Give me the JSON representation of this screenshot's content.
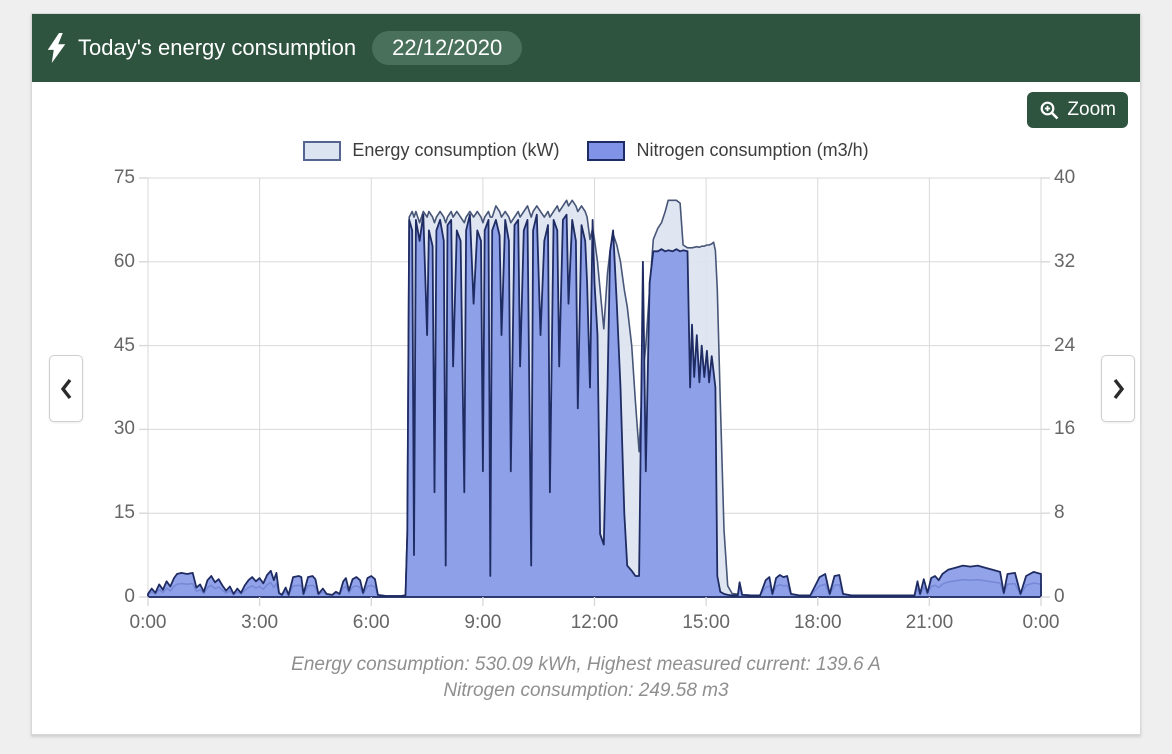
{
  "header": {
    "title": "Today's energy consumption",
    "date_badge": "22/12/2020",
    "background": "#2e5440",
    "badge_background": "#48705a"
  },
  "toolbar": {
    "zoom_label": "Zoom"
  },
  "icons": {
    "header_icon": "lightning-bolt",
    "zoom_icon": "magnifier-plus",
    "prev_icon": "chevron-left",
    "next_icon": "chevron-right"
  },
  "legend": [
    {
      "label": "Energy consumption (kW)",
      "fill": "#dce3f1",
      "border": "#55658f"
    },
    {
      "label": "Nitrogen consumption (m3/h)",
      "fill": "#8093e6",
      "border": "#1f2c63"
    }
  ],
  "caption": {
    "line1": "Energy consumption: 530.09 kWh, Highest measured current: 139.6 A",
    "line2": "Nitrogen consumption: 249.58 m3"
  },
  "chart_data": {
    "type": "area",
    "title": "Today's energy consumption 22/12/2020",
    "grid": true,
    "legend_position": "top",
    "x_axis": {
      "unit": "time of day",
      "range_hours": [
        0,
        24
      ],
      "tick_hours": [
        0,
        3,
        6,
        9,
        12,
        15,
        18,
        21,
        24
      ],
      "tick_labels": [
        "0:00",
        "3:00",
        "6:00",
        "9:00",
        "12:00",
        "15:00",
        "18:00",
        "21:00",
        "0:00"
      ]
    },
    "y_left": {
      "label": "Energy consumption (kW)",
      "range": [
        0,
        75
      ],
      "ticks": [
        0,
        15,
        30,
        45,
        60,
        75
      ]
    },
    "y_right": {
      "label": "Nitrogen consumption (m3/h)",
      "range": [
        0,
        40
      ],
      "ticks": [
        0,
        8,
        16,
        24,
        32,
        40
      ]
    },
    "series": [
      {
        "name": "Energy consumption (kW)",
        "axis": "left",
        "fill": "#dce3f1",
        "fill_opacity": 0.9,
        "stroke": "#475577",
        "stroke_width": 1.6
      },
      {
        "name": "Nitrogen consumption (m3/h)",
        "axis": "right",
        "fill": "#8093e6",
        "fill_opacity": 0.85,
        "stroke": "#1f2c63",
        "stroke_width": 1.8
      }
    ],
    "points_format": [
      "hour",
      "energy_kW",
      "nitrogen_m3h"
    ],
    "points": [
      [
        0,
        0.4,
        0.3
      ],
      [
        0.1,
        0.9,
        0.8
      ],
      [
        0.2,
        0.5,
        0.4
      ],
      [
        0.3,
        1.3,
        1.2
      ],
      [
        0.4,
        0.8,
        0.7
      ],
      [
        0.5,
        1.6,
        1.5
      ],
      [
        0.6,
        1.1,
        1.0
      ],
      [
        0.7,
        1.9,
        1.8
      ],
      [
        0.78,
        2.3,
        2.2
      ],
      [
        0.9,
        2.4,
        2.3
      ],
      [
        1.05,
        2.3,
        2.2
      ],
      [
        1.2,
        2.4,
        2.3
      ],
      [
        1.3,
        1.0,
        0.9
      ],
      [
        1.4,
        1.3,
        1.2
      ],
      [
        1.5,
        0.6,
        0.5
      ],
      [
        1.6,
        1.7,
        1.6
      ],
      [
        1.7,
        2.1,
        2.0
      ],
      [
        1.8,
        1.5,
        1.4
      ],
      [
        1.9,
        1.8,
        1.7
      ],
      [
        2.0,
        1.2,
        1.1
      ],
      [
        2.1,
        0.7,
        0.6
      ],
      [
        2.2,
        1.1,
        1.0
      ],
      [
        2.3,
        0.4,
        0.3
      ],
      [
        2.4,
        0.9,
        0.8
      ],
      [
        2.5,
        0.5,
        0.4
      ],
      [
        2.6,
        1.2,
        1.1
      ],
      [
        2.7,
        1.7,
        1.6
      ],
      [
        2.8,
        2.0,
        1.9
      ],
      [
        2.9,
        1.6,
        1.5
      ],
      [
        3.0,
        1.9,
        1.8
      ],
      [
        3.1,
        1.4,
        1.3
      ],
      [
        3.2,
        2.2,
        2.1
      ],
      [
        3.3,
        2.6,
        2.5
      ],
      [
        3.38,
        1.7,
        1.6
      ],
      [
        3.45,
        2.4,
        2.3
      ],
      [
        3.52,
        0.5,
        0.4
      ],
      [
        3.6,
        0.3,
        0.2
      ],
      [
        3.7,
        1.0,
        0.9
      ],
      [
        3.78,
        0.3,
        0.2
      ],
      [
        3.9,
        2.0,
        1.9
      ],
      [
        4.05,
        2.1,
        2.0
      ],
      [
        4.12,
        2.0,
        1.9
      ],
      [
        4.18,
        0.4,
        0.3
      ],
      [
        4.3,
        2.0,
        1.9
      ],
      [
        4.42,
        2.1,
        2.0
      ],
      [
        4.5,
        1.8,
        1.7
      ],
      [
        4.58,
        0.4,
        0.3
      ],
      [
        4.7,
        0.9,
        0.8
      ],
      [
        4.8,
        0.4,
        0.3
      ],
      [
        4.95,
        0.3,
        0.2
      ],
      [
        5.05,
        0.6,
        0.5
      ],
      [
        5.15,
        0.4,
        0.3
      ],
      [
        5.25,
        1.6,
        1.5
      ],
      [
        5.32,
        1.9,
        1.8
      ],
      [
        5.4,
        0.7,
        0.6
      ],
      [
        5.5,
        1.8,
        1.7
      ],
      [
        5.6,
        2.0,
        1.9
      ],
      [
        5.7,
        1.7,
        1.6
      ],
      [
        5.78,
        0.5,
        0.4
      ],
      [
        5.9,
        1.9,
        1.8
      ],
      [
        6.0,
        2.1,
        2.0
      ],
      [
        6.1,
        1.8,
        1.7
      ],
      [
        6.18,
        0.3,
        0.2
      ],
      [
        6.4,
        0.2,
        0.1
      ],
      [
        6.6,
        0.2,
        0.1
      ],
      [
        6.8,
        0.2,
        0.1
      ],
      [
        6.92,
        0.3,
        0.15
      ],
      [
        6.97,
        12,
        6
      ],
      [
        7.02,
        68,
        36
      ],
      [
        7.1,
        69,
        35
      ],
      [
        7.15,
        68,
        4
      ],
      [
        7.2,
        69,
        36
      ],
      [
        7.3,
        67,
        34
      ],
      [
        7.4,
        69,
        36.5
      ],
      [
        7.5,
        68,
        25
      ],
      [
        7.55,
        69,
        35
      ],
      [
        7.65,
        68,
        33.5
      ],
      [
        7.7,
        67,
        10
      ],
      [
        7.75,
        68,
        35
      ],
      [
        7.85,
        69,
        36
      ],
      [
        7.95,
        68,
        34
      ],
      [
        8.0,
        67,
        3
      ],
      [
        8.05,
        68,
        35.5
      ],
      [
        8.15,
        69,
        36
      ],
      [
        8.2,
        68,
        22
      ],
      [
        8.3,
        69,
        35
      ],
      [
        8.4,
        68,
        34
      ],
      [
        8.5,
        67,
        10
      ],
      [
        8.55,
        68,
        35
      ],
      [
        8.65,
        69,
        36.5
      ],
      [
        8.75,
        68,
        28
      ],
      [
        8.85,
        69,
        35
      ],
      [
        8.95,
        68,
        34
      ],
      [
        9.0,
        67,
        12
      ],
      [
        9.05,
        68,
        35
      ],
      [
        9.15,
        69,
        36
      ],
      [
        9.2,
        68,
        2
      ],
      [
        9.25,
        68,
        35
      ],
      [
        9.35,
        70,
        36
      ],
      [
        9.45,
        69,
        34.5
      ],
      [
        9.5,
        68,
        25
      ],
      [
        9.6,
        69,
        36
      ],
      [
        9.7,
        68,
        34
      ],
      [
        9.75,
        67,
        12
      ],
      [
        9.85,
        68,
        35.5
      ],
      [
        9.95,
        69,
        36
      ],
      [
        10.0,
        68,
        22
      ],
      [
        10.1,
        69,
        35
      ],
      [
        10.2,
        70,
        36
      ],
      [
        10.3,
        68,
        3
      ],
      [
        10.35,
        69,
        35
      ],
      [
        10.45,
        70,
        36.5
      ],
      [
        10.55,
        69,
        25
      ],
      [
        10.65,
        68,
        34
      ],
      [
        10.75,
        69,
        35.5
      ],
      [
        10.8,
        68,
        10
      ],
      [
        10.9,
        69,
        36
      ],
      [
        11.0,
        70,
        35
      ],
      [
        11.05,
        69,
        22
      ],
      [
        11.15,
        70,
        36
      ],
      [
        11.25,
        71,
        36.5
      ],
      [
        11.3,
        70,
        28
      ],
      [
        11.4,
        71,
        36
      ],
      [
        11.5,
        70,
        34
      ],
      [
        11.55,
        69,
        18
      ],
      [
        11.65,
        70,
        35.5
      ],
      [
        11.75,
        69,
        34
      ],
      [
        11.8,
        68,
        30
      ],
      [
        11.88,
        64,
        20
      ],
      [
        11.95,
        66,
        36
      ],
      [
        12.0,
        64,
        30
      ],
      [
        12.08,
        60,
        25
      ],
      [
        12.15,
        55,
        6
      ],
      [
        12.25,
        48,
        5
      ],
      [
        12.35,
        58,
        20
      ],
      [
        12.42,
        62,
        33
      ],
      [
        12.5,
        65,
        35
      ],
      [
        12.6,
        63,
        28
      ],
      [
        12.7,
        60,
        20
      ],
      [
        12.8,
        55,
        8
      ],
      [
        12.88,
        52,
        3
      ],
      [
        13.0,
        45,
        2.5
      ],
      [
        13.1,
        35,
        2
      ],
      [
        13.2,
        26,
        2
      ],
      [
        13.3,
        40,
        32
      ],
      [
        13.38,
        45,
        12
      ],
      [
        13.48,
        55,
        30
      ],
      [
        13.58,
        64,
        33
      ],
      [
        13.7,
        66,
        33
      ],
      [
        13.8,
        67,
        33.2
      ],
      [
        13.9,
        69,
        33
      ],
      [
        13.98,
        71,
        33.1
      ],
      [
        14.1,
        71,
        33
      ],
      [
        14.2,
        71,
        33.2
      ],
      [
        14.3,
        70.5,
        33
      ],
      [
        14.38,
        63,
        33.1
      ],
      [
        14.5,
        62.5,
        33
      ],
      [
        14.57,
        62.5,
        20
      ],
      [
        14.62,
        62.5,
        26
      ],
      [
        14.68,
        62.6,
        21
      ],
      [
        14.75,
        62.7,
        25
      ],
      [
        14.82,
        62.6,
        20.5
      ],
      [
        14.88,
        62.8,
        24
      ],
      [
        14.95,
        62.8,
        21
      ],
      [
        15.02,
        63,
        23.5
      ],
      [
        15.08,
        63,
        20.5
      ],
      [
        15.15,
        63.2,
        23
      ],
      [
        15.2,
        63.5,
        21.5
      ],
      [
        15.25,
        62,
        20
      ],
      [
        15.3,
        55,
        2
      ],
      [
        15.38,
        35,
        0.5
      ],
      [
        15.48,
        12,
        0.3
      ],
      [
        15.58,
        2,
        0.2
      ],
      [
        15.7,
        0.6,
        0.15
      ],
      [
        15.85,
        0.5,
        0.15
      ],
      [
        15.9,
        1.6,
        1.4
      ],
      [
        15.97,
        0.4,
        0.2
      ],
      [
        16.2,
        0.3,
        0.15
      ],
      [
        16.45,
        0.3,
        0.15
      ],
      [
        16.6,
        1.7,
        1.6
      ],
      [
        16.7,
        2.0,
        1.9
      ],
      [
        16.78,
        0.4,
        0.3
      ],
      [
        16.88,
        1.9,
        1.8
      ],
      [
        16.98,
        2.2,
        2.1
      ],
      [
        17.08,
        2.0,
        1.9
      ],
      [
        17.18,
        2.1,
        2.0
      ],
      [
        17.28,
        0.4,
        0.3
      ],
      [
        17.5,
        0.3,
        0.15
      ],
      [
        17.8,
        0.3,
        0.15
      ],
      [
        18.05,
        2.0,
        1.9
      ],
      [
        18.2,
        2.3,
        2.2
      ],
      [
        18.32,
        0.4,
        0.3
      ],
      [
        18.45,
        2.1,
        2.0
      ],
      [
        18.58,
        2.2,
        2.1
      ],
      [
        18.68,
        0.4,
        0.3
      ],
      [
        18.9,
        0.3,
        0.15
      ],
      [
        19.3,
        0.3,
        0.15
      ],
      [
        19.8,
        0.3,
        0.15
      ],
      [
        20.3,
        0.3,
        0.15
      ],
      [
        20.6,
        0.3,
        0.15
      ],
      [
        20.68,
        1.6,
        1.5
      ],
      [
        20.75,
        0.4,
        0.3
      ],
      [
        20.85,
        1.8,
        1.7
      ],
      [
        20.95,
        0.5,
        0.4
      ],
      [
        21.05,
        1.9,
        1.8
      ],
      [
        21.15,
        2.1,
        2.0
      ],
      [
        21.25,
        1.7,
        1.6
      ],
      [
        21.35,
        2.3,
        2.2
      ],
      [
        21.5,
        2.7,
        2.6
      ],
      [
        21.7,
        2.9,
        2.8
      ],
      [
        21.9,
        3.1,
        3.0
      ],
      [
        22.1,
        3.0,
        2.9
      ],
      [
        22.3,
        3.1,
        3.0
      ],
      [
        22.5,
        2.9,
        2.8
      ],
      [
        22.7,
        2.7,
        2.6
      ],
      [
        22.9,
        2.5,
        2.4
      ],
      [
        23.0,
        0.5,
        0.4
      ],
      [
        23.1,
        2.3,
        2.2
      ],
      [
        23.3,
        2.4,
        2.3
      ],
      [
        23.45,
        0.4,
        0.3
      ],
      [
        23.6,
        2.1,
        2.0
      ],
      [
        23.8,
        2.5,
        2.4
      ],
      [
        24.0,
        2.3,
        2.2
      ]
    ],
    "annotations": [
      "Energy consumption: 530.09 kWh, Highest measured current: 139.6 A",
      "Nitrogen consumption: 249.58 m3"
    ]
  }
}
